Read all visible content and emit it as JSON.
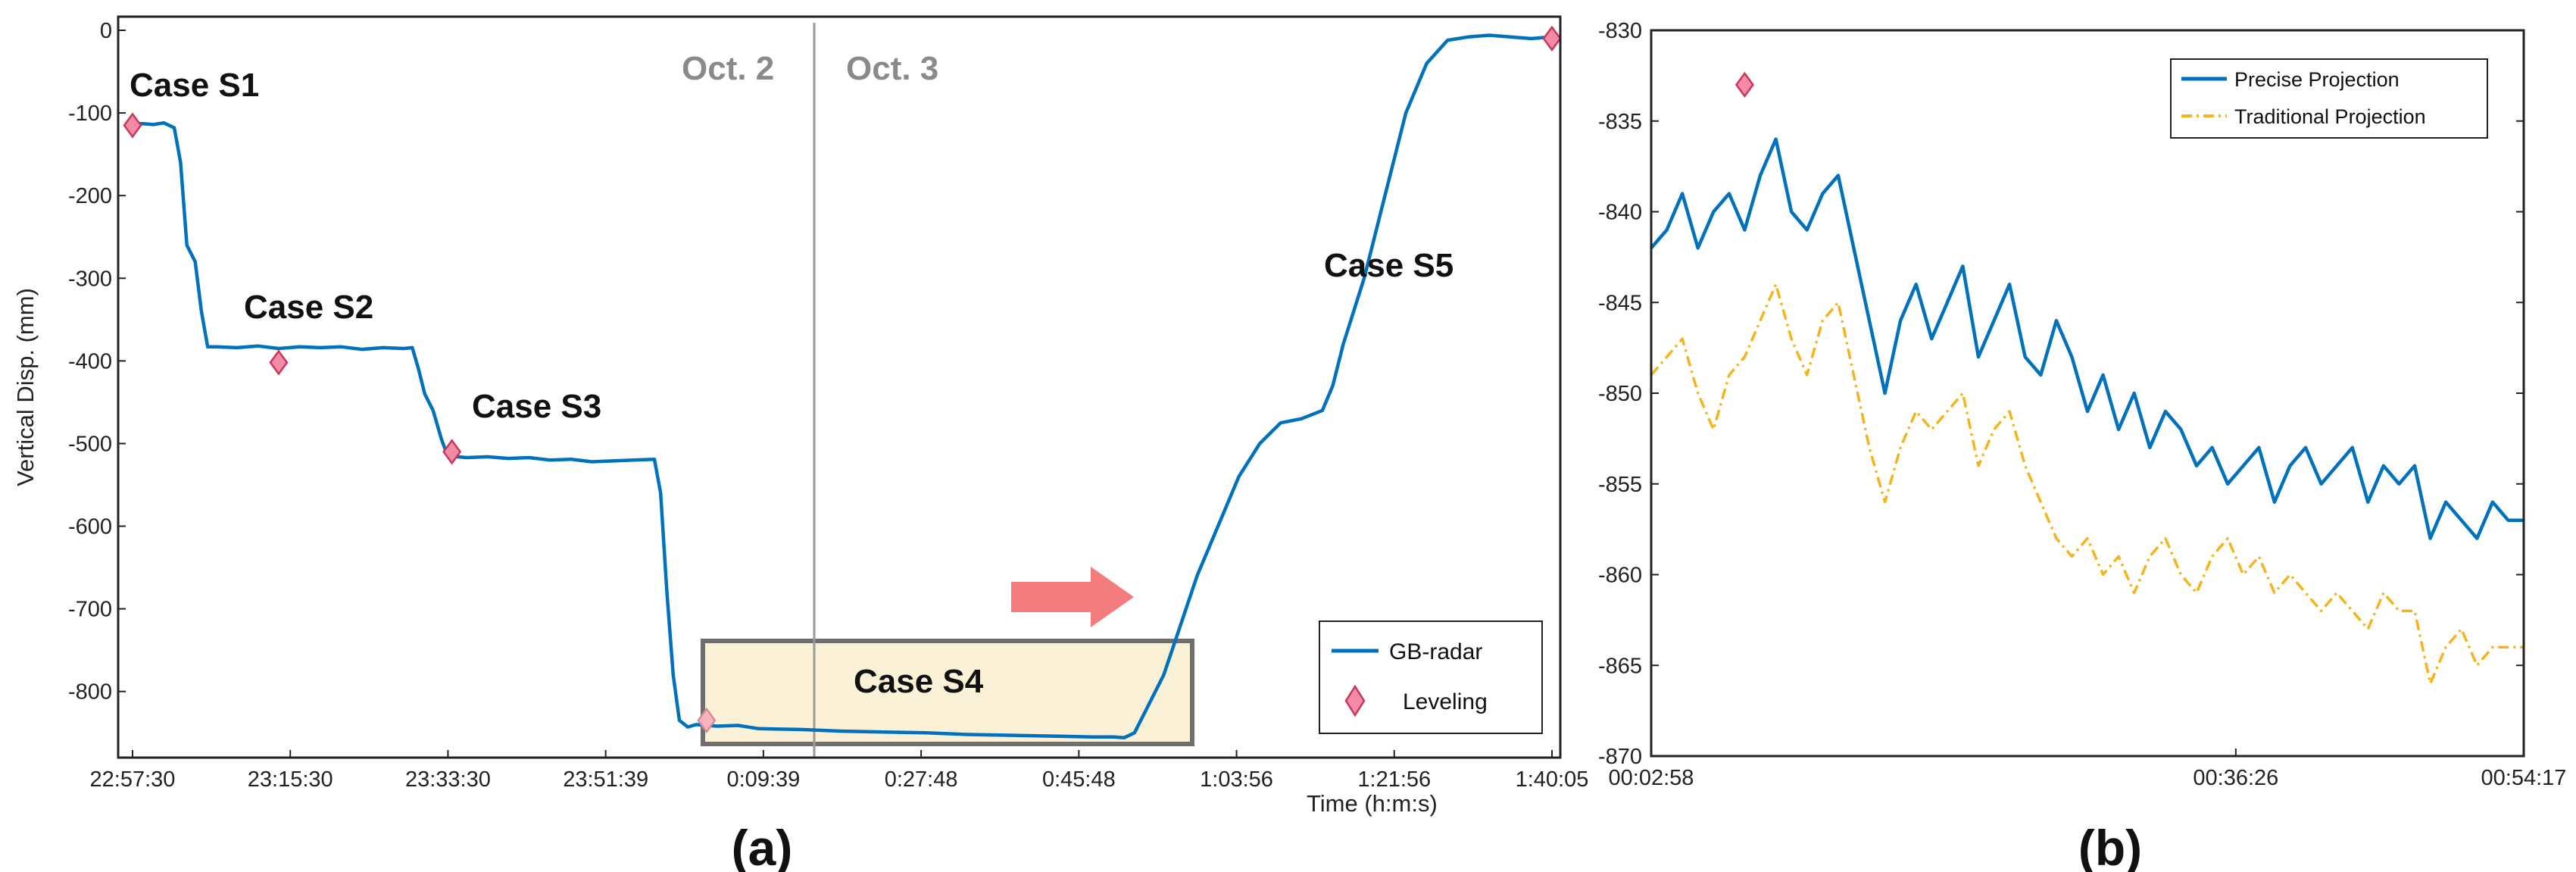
{
  "panel_labels": [
    "(a)",
    "(b)"
  ],
  "chart_data": [
    {
      "type": "line",
      "ylabel": "Vertical Disp. (mm)",
      "xlabel": "Time (h:m:s)",
      "ylim": [
        -880,
        0
      ],
      "yticks": [
        0,
        -100,
        -200,
        -300,
        -400,
        -500,
        -600,
        -700,
        -800
      ],
      "x_tick_labels": [
        "22:57:30",
        "23:15:30",
        "23:33:30",
        "23:51:39",
        "0:09:39",
        "0:27:48",
        "0:45:48",
        "1:03:56",
        "1:21:56",
        "1:40:05"
      ],
      "x_tick_labels_text": [
        "22:57:30",
        "23:15:30",
        "23:33:30",
        "23:51:39",
        "0:09:39",
        "0:27:48",
        "0:45:48",
        "1:03:56",
        "1:21:56",
        "1:40:05"
      ],
      "date_labels": [
        "Oct. 2",
        "Oct. 3"
      ],
      "case_labels": [
        "Case S1",
        "Case S2",
        "Case S3",
        "Case S4",
        "Case S5"
      ],
      "legend": {
        "location": "bottom-right",
        "entries": [
          "GB-radar",
          "Leveling"
        ]
      },
      "grid": false,
      "series": [
        {
          "name": "GB-radar",
          "color": "#0072BD",
          "points": [
            [
              0,
              -113
            ],
            [
              0.5,
              -113
            ],
            [
              1,
              -114
            ],
            [
              1.5,
              -112
            ],
            [
              2,
              -118
            ],
            [
              2.3,
              -160
            ],
            [
              2.6,
              -260
            ],
            [
              3,
              -280
            ],
            [
              3.3,
              -340
            ],
            [
              3.6,
              -383
            ],
            [
              4,
              -383
            ],
            [
              5,
              -384
            ],
            [
              6,
              -382
            ],
            [
              7,
              -385
            ],
            [
              8,
              -383
            ],
            [
              9,
              -384
            ],
            [
              10,
              -383
            ],
            [
              11,
              -386
            ],
            [
              12,
              -384
            ],
            [
              13,
              -385
            ],
            [
              13.4,
              -384
            ],
            [
              13.7,
              -410
            ],
            [
              14,
              -440
            ],
            [
              14.4,
              -460
            ],
            [
              14.8,
              -495
            ],
            [
              15.1,
              -515
            ],
            [
              16,
              -517
            ],
            [
              17,
              -516
            ],
            [
              18,
              -518
            ],
            [
              19,
              -517
            ],
            [
              20,
              -520
            ],
            [
              21,
              -519
            ],
            [
              22,
              -522
            ],
            [
              23,
              -521
            ],
            [
              24,
              -520
            ],
            [
              25,
              -519
            ],
            [
              25.3,
              -560
            ],
            [
              25.6,
              -680
            ],
            [
              25.9,
              -780
            ],
            [
              26.2,
              -835
            ],
            [
              26.6,
              -843
            ],
            [
              27,
              -840
            ],
            [
              28,
              -842
            ],
            [
              29,
              -841
            ],
            [
              30,
              -845
            ],
            [
              32,
              -846
            ],
            [
              34,
              -848
            ],
            [
              36,
              -849
            ],
            [
              38,
              -850
            ],
            [
              40,
              -852
            ],
            [
              42,
              -853
            ],
            [
              44,
              -854
            ],
            [
              46,
              -855
            ],
            [
              47,
              -855
            ],
            [
              47.5,
              -856
            ],
            [
              48,
              -850
            ],
            [
              48.6,
              -820
            ],
            [
              49.4,
              -780
            ],
            [
              50.2,
              -720
            ],
            [
              51,
              -660
            ],
            [
              52,
              -600
            ],
            [
              53,
              -540
            ],
            [
              54,
              -500
            ],
            [
              55,
              -475
            ],
            [
              56,
              -470
            ],
            [
              57,
              -460
            ],
            [
              57.5,
              -430
            ],
            [
              58,
              -380
            ],
            [
              59,
              -300
            ],
            [
              60,
              -200
            ],
            [
              61,
              -100
            ],
            [
              62,
              -40
            ],
            [
              63,
              -12
            ],
            [
              64,
              -8
            ],
            [
              65,
              -6
            ],
            [
              66,
              -8
            ],
            [
              67,
              -10
            ],
            [
              68,
              -8
            ]
          ]
        }
      ],
      "leveling_points": [
        [
          0,
          -115
        ],
        [
          7,
          -402
        ],
        [
          15.3,
          -510
        ],
        [
          27.5,
          -835
        ],
        [
          68,
          -10
        ]
      ]
    },
    {
      "type": "line",
      "ylim": [
        -870,
        -830
      ],
      "yticks": [
        -830,
        -835,
        -840,
        -845,
        -850,
        -855,
        -860,
        -865,
        -870
      ],
      "x_tick_labels": [
        "00:02:58",
        "00:36:26",
        "00:54:17"
      ],
      "legend": {
        "location": "top-right",
        "entries": [
          "Precise Projection",
          "Traditional Projection"
        ]
      },
      "leveling_points": [
        [
          6,
          -833
        ]
      ],
      "series": [
        {
          "name": "Precise Projection",
          "color": "#0072BD",
          "style": "solid",
          "points": [
            [
              0,
              -842
            ],
            [
              1,
              -841
            ],
            [
              2,
              -839
            ],
            [
              3,
              -842
            ],
            [
              4,
              -840
            ],
            [
              5,
              -839
            ],
            [
              6,
              -841
            ],
            [
              7,
              -838
            ],
            [
              8,
              -836
            ],
            [
              9,
              -840
            ],
            [
              10,
              -841
            ],
            [
              11,
              -839
            ],
            [
              12,
              -838
            ],
            [
              13,
              -842
            ],
            [
              14,
              -846
            ],
            [
              15,
              -850
            ],
            [
              16,
              -846
            ],
            [
              17,
              -844
            ],
            [
              18,
              -847
            ],
            [
              19,
              -845
            ],
            [
              20,
              -843
            ],
            [
              21,
              -848
            ],
            [
              22,
              -846
            ],
            [
              23,
              -844
            ],
            [
              24,
              -848
            ],
            [
              25,
              -849
            ],
            [
              26,
              -846
            ],
            [
              27,
              -848
            ],
            [
              28,
              -851
            ],
            [
              29,
              -849
            ],
            [
              30,
              -852
            ],
            [
              31,
              -850
            ],
            [
              32,
              -853
            ],
            [
              33,
              -851
            ],
            [
              34,
              -852
            ],
            [
              35,
              -854
            ],
            [
              36,
              -853
            ],
            [
              37,
              -855
            ],
            [
              38,
              -854
            ],
            [
              39,
              -853
            ],
            [
              40,
              -856
            ],
            [
              41,
              -854
            ],
            [
              42,
              -853
            ],
            [
              43,
              -855
            ],
            [
              44,
              -854
            ],
            [
              45,
              -853
            ],
            [
              46,
              -856
            ],
            [
              47,
              -854
            ],
            [
              48,
              -855
            ],
            [
              49,
              -854
            ],
            [
              50,
              -858
            ],
            [
              51,
              -856
            ],
            [
              52,
              -857
            ],
            [
              53,
              -858
            ],
            [
              54,
              -856
            ],
            [
              55,
              -857
            ],
            [
              56,
              -857
            ]
          ]
        },
        {
          "name": "Traditional Projection",
          "color": "#F5B41C",
          "style": "dash-dot",
          "points": [
            [
              0,
              -849
            ],
            [
              1,
              -848
            ],
            [
              2,
              -847
            ],
            [
              3,
              -850
            ],
            [
              4,
              -852
            ],
            [
              5,
              -849
            ],
            [
              6,
              -848
            ],
            [
              7,
              -846
            ],
            [
              8,
              -844
            ],
            [
              9,
              -847
            ],
            [
              10,
              -849
            ],
            [
              11,
              -846
            ],
            [
              12,
              -845
            ],
            [
              13,
              -849
            ],
            [
              14,
              -853
            ],
            [
              15,
              -856
            ],
            [
              16,
              -853
            ],
            [
              17,
              -851
            ],
            [
              18,
              -852
            ],
            [
              19,
              -851
            ],
            [
              20,
              -850
            ],
            [
              21,
              -854
            ],
            [
              22,
              -852
            ],
            [
              23,
              -851
            ],
            [
              24,
              -854
            ],
            [
              25,
              -856
            ],
            [
              26,
              -858
            ],
            [
              27,
              -859
            ],
            [
              28,
              -858
            ],
            [
              29,
              -860
            ],
            [
              30,
              -859
            ],
            [
              31,
              -861
            ],
            [
              32,
              -859
            ],
            [
              33,
              -858
            ],
            [
              34,
              -860
            ],
            [
              35,
              -861
            ],
            [
              36,
              -859
            ],
            [
              37,
              -858
            ],
            [
              38,
              -860
            ],
            [
              39,
              -859
            ],
            [
              40,
              -861
            ],
            [
              41,
              -860
            ],
            [
              42,
              -861
            ],
            [
              43,
              -862
            ],
            [
              44,
              -861
            ],
            [
              45,
              -862
            ],
            [
              46,
              -863
            ],
            [
              47,
              -861
            ],
            [
              48,
              -862
            ],
            [
              49,
              -862
            ],
            [
              50,
              -866
            ],
            [
              51,
              -864
            ],
            [
              52,
              -863
            ],
            [
              53,
              -865
            ],
            [
              54,
              -864
            ],
            [
              55,
              -864
            ],
            [
              56,
              -864
            ]
          ]
        }
      ]
    }
  ],
  "colors": {
    "gb_radar": "#0072BD",
    "leveling_fill": "#F48BA6",
    "leveling_stroke": "#C8375A",
    "traditional": "#F5B41C",
    "arrow": "#F47B7B",
    "highlight_box_fill": "#FBF1D6",
    "highlight_box_stroke": "#6E6E6E",
    "date_divider": "#9a9a9a"
  }
}
